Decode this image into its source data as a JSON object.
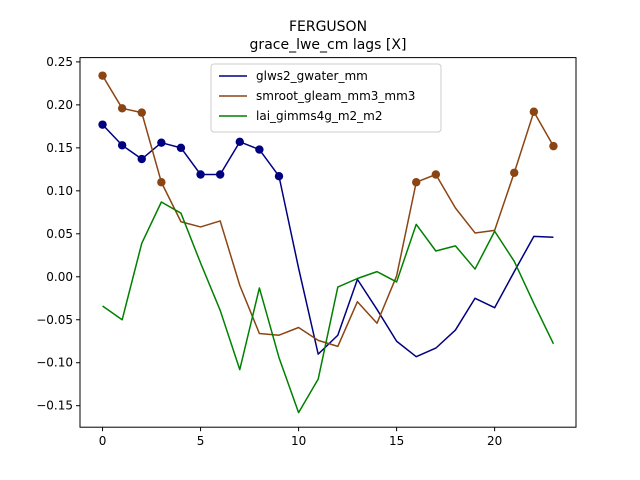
{
  "chart_data": {
    "type": "line",
    "title": "FERGUSON",
    "subtitle": "grace_lwe_cm lags [X]",
    "xlabel": "",
    "ylabel": "",
    "xlim": [
      -1.15,
      24.15
    ],
    "ylim": [
      -0.175,
      0.255
    ],
    "xticks": [
      0,
      5,
      10,
      15,
      20
    ],
    "yticks": [
      -0.15,
      -0.1,
      -0.05,
      0.0,
      0.05,
      0.1,
      0.15,
      0.2,
      0.25
    ],
    "ytick_labels": [
      "−0.15",
      "−0.10",
      "−0.05",
      "0.00",
      "0.05",
      "0.10",
      "0.15",
      "0.20",
      "0.25"
    ],
    "grid": false,
    "legend_position": "top-center",
    "x": [
      0,
      1,
      2,
      3,
      4,
      5,
      6,
      7,
      8,
      9,
      10,
      11,
      12,
      13,
      14,
      15,
      16,
      17,
      18,
      19,
      20,
      21,
      22,
      23
    ],
    "series": [
      {
        "name": "glws2_gwater_mm",
        "color": "#000080",
        "values": [
          0.177,
          0.153,
          0.137,
          0.156,
          0.15,
          0.119,
          0.119,
          0.157,
          0.148,
          0.117,
          0.01,
          -0.09,
          -0.068,
          -0.003,
          -0.038,
          -0.075,
          -0.093,
          -0.083,
          -0.062,
          -0.025,
          -0.036,
          0.006,
          0.047,
          0.046
        ],
        "markers": [
          0,
          1,
          2,
          3,
          4,
          5,
          6,
          7,
          8,
          9
        ]
      },
      {
        "name": "smroot_gleam_mm3_mm3",
        "color": "#8B4513",
        "values": [
          0.234,
          0.196,
          0.191,
          0.11,
          0.064,
          0.058,
          0.065,
          -0.01,
          -0.066,
          -0.068,
          -0.059,
          -0.074,
          -0.081,
          -0.029,
          -0.054,
          0.001,
          0.11,
          0.119,
          0.08,
          0.051,
          0.054,
          0.121,
          0.192,
          0.152
        ],
        "markers": [
          0,
          1,
          2,
          3,
          16,
          17,
          21,
          22,
          23
        ]
      },
      {
        "name": "lai_gimms4g_m2_m2",
        "color": "#008000",
        "values": [
          -0.034,
          -0.05,
          0.039,
          0.087,
          0.074,
          0.016,
          -0.039,
          -0.108,
          -0.013,
          -0.094,
          -0.158,
          -0.119,
          -0.012,
          -0.002,
          0.006,
          -0.006,
          0.061,
          0.03,
          0.036,
          0.009,
          0.053,
          0.018,
          -0.031,
          -0.078
        ],
        "markers": []
      }
    ]
  }
}
